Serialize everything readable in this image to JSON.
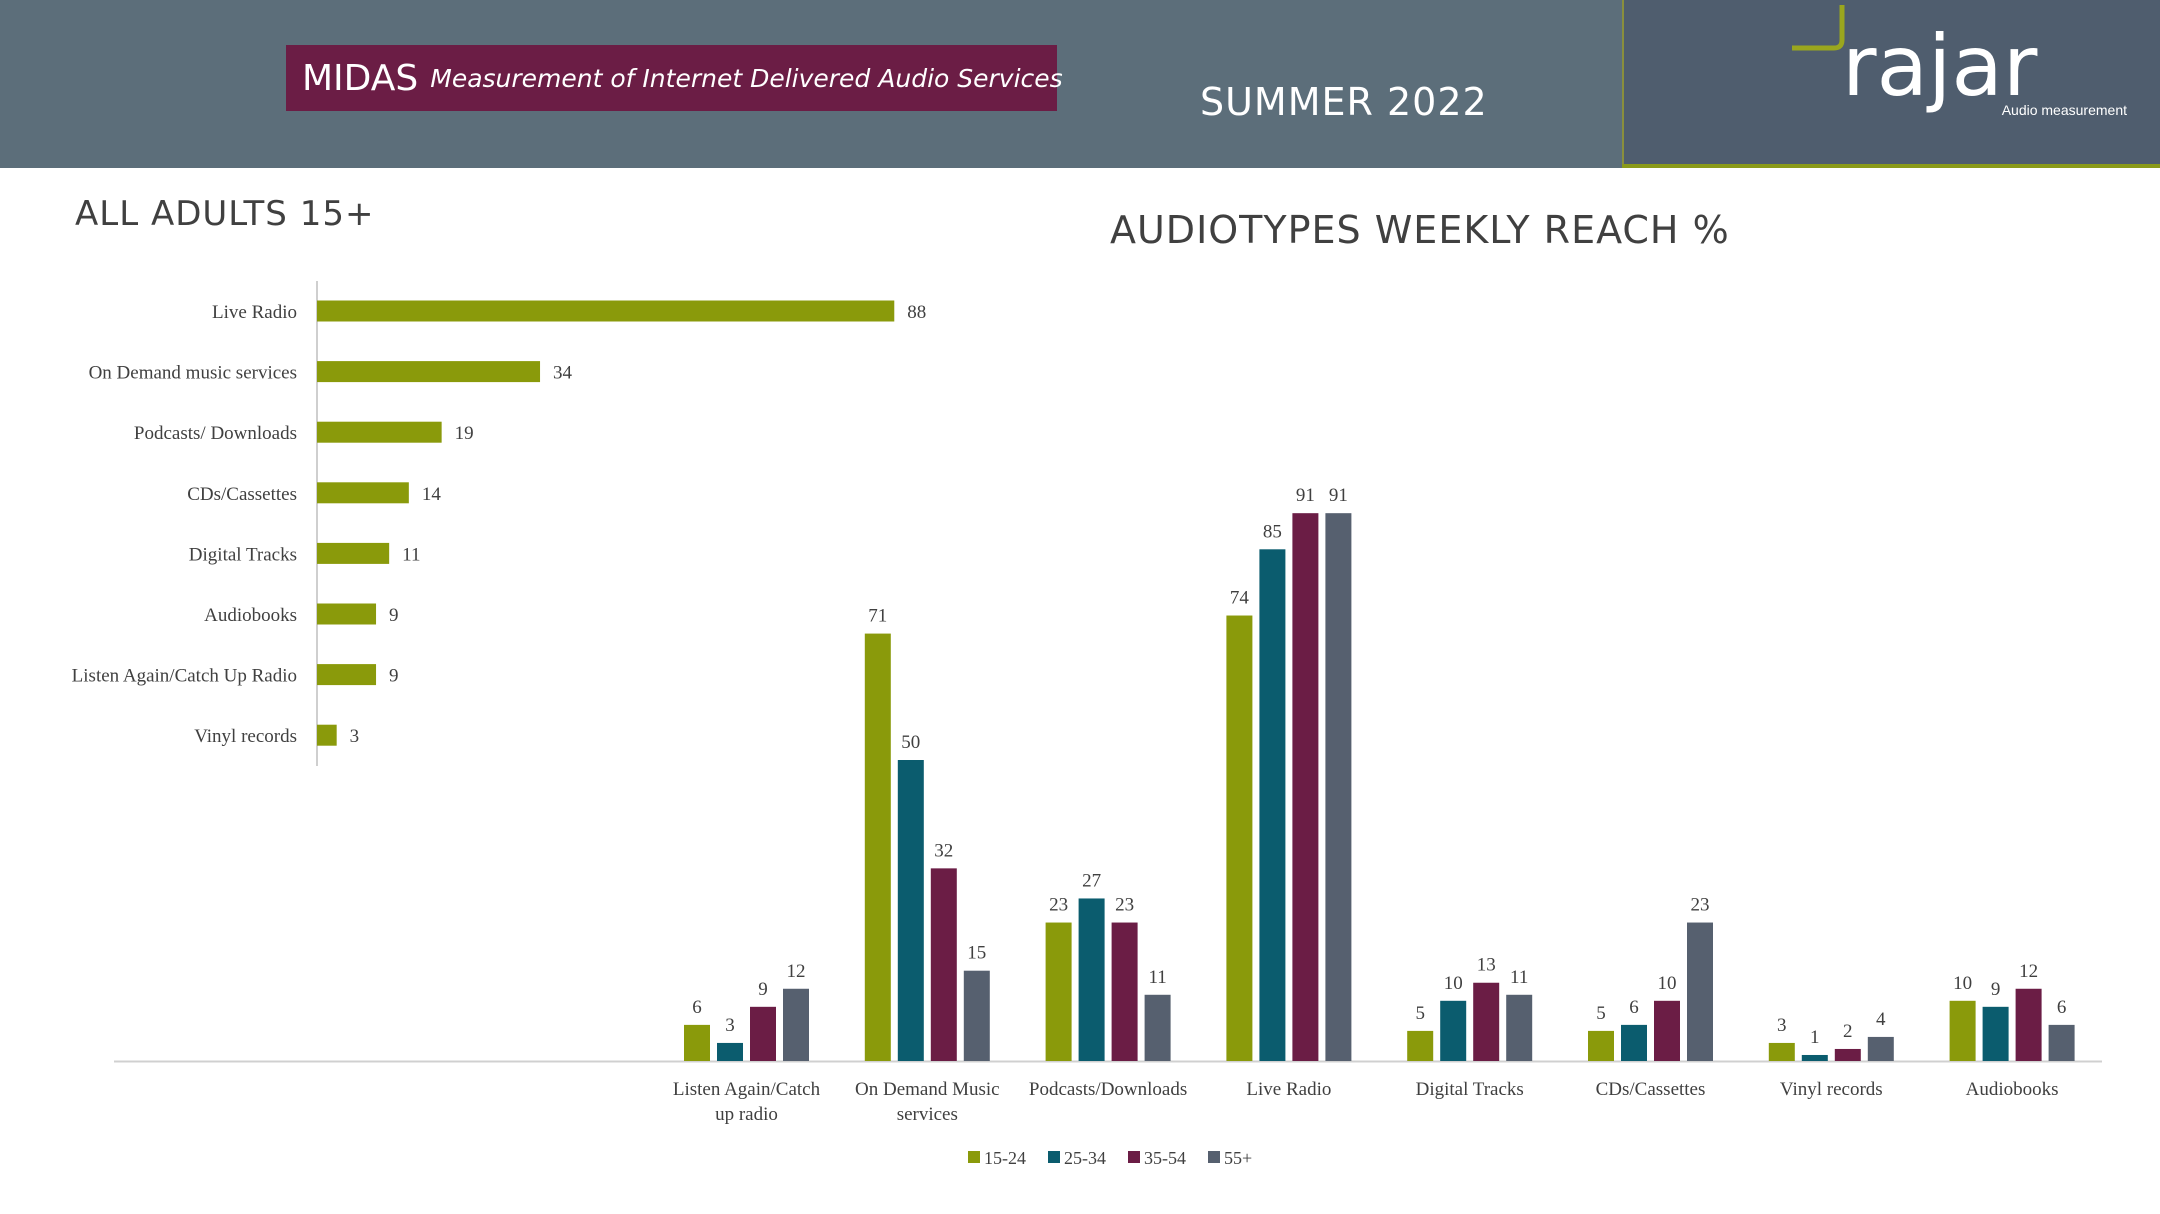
{
  "header": {
    "midas_word": "MIDAS",
    "midas_subtitle": "Measurement of Internet Delivered Audio Services",
    "season": "SUMMER 2022",
    "logo_text": "rajar",
    "logo_tagline": "Audio measurement"
  },
  "colors": {
    "header_bg": "#5c6e7a",
    "logo_bg": "#4f5d6e",
    "midas_bg": "#6b1d45",
    "accent_green": "#8a9a1a"
  },
  "left_chart_title": "ALL ADULTS 15+",
  "right_chart_title": "AUDIOTYPES WEEKLY REACH %",
  "chart_data": [
    {
      "type": "bar",
      "orientation": "horizontal",
      "title": "ALL ADULTS 15+",
      "categories": [
        "Live Radio",
        "On Demand music services",
        "Podcasts/ Downloads",
        "CDs/Cassettes",
        "Digital Tracks",
        "Audiobooks",
        "Listen Again/Catch Up Radio",
        "Vinyl records"
      ],
      "values": [
        88,
        34,
        19,
        14,
        11,
        9,
        9,
        3
      ],
      "color": "#8a9a0b",
      "xlim": [
        0,
        100
      ],
      "grid": false,
      "data_labels": true
    },
    {
      "type": "bar",
      "orientation": "vertical",
      "title": "AUDIOTYPES WEEKLY REACH %",
      "categories": [
        "Listen Again/Catch up radio",
        "On Demand Music services",
        "Podcasts/Downloads",
        "Live Radio",
        "Digital Tracks",
        "CDs/Cassettes",
        "Vinyl records",
        "Audiobooks"
      ],
      "category_lines": [
        [
          "Listen Again/Catch",
          "up radio"
        ],
        [
          "On Demand Music",
          "services"
        ],
        [
          "Podcasts/Downloads"
        ],
        [
          "Live Radio"
        ],
        [
          "Digital Tracks"
        ],
        [
          "CDs/Cassettes"
        ],
        [
          "Vinyl records"
        ],
        [
          "Audiobooks"
        ]
      ],
      "series": [
        {
          "name": "15-24",
          "color": "#8a9a0b",
          "values": [
            6,
            71,
            23,
            74,
            5,
            5,
            3,
            10
          ]
        },
        {
          "name": "25-34",
          "color": "#0b5c6e",
          "values": [
            3,
            50,
            27,
            85,
            10,
            6,
            1,
            9
          ]
        },
        {
          "name": "35-54",
          "color": "#6b1d45",
          "values": [
            9,
            32,
            23,
            91,
            13,
            10,
            2,
            12
          ]
        },
        {
          "name": "55+",
          "color": "#56606f",
          "values": [
            12,
            15,
            11,
            91,
            11,
            23,
            4,
            6
          ]
        }
      ],
      "ylim": [
        0,
        100
      ],
      "grid": false,
      "legend_position": "bottom",
      "data_labels": true
    }
  ]
}
